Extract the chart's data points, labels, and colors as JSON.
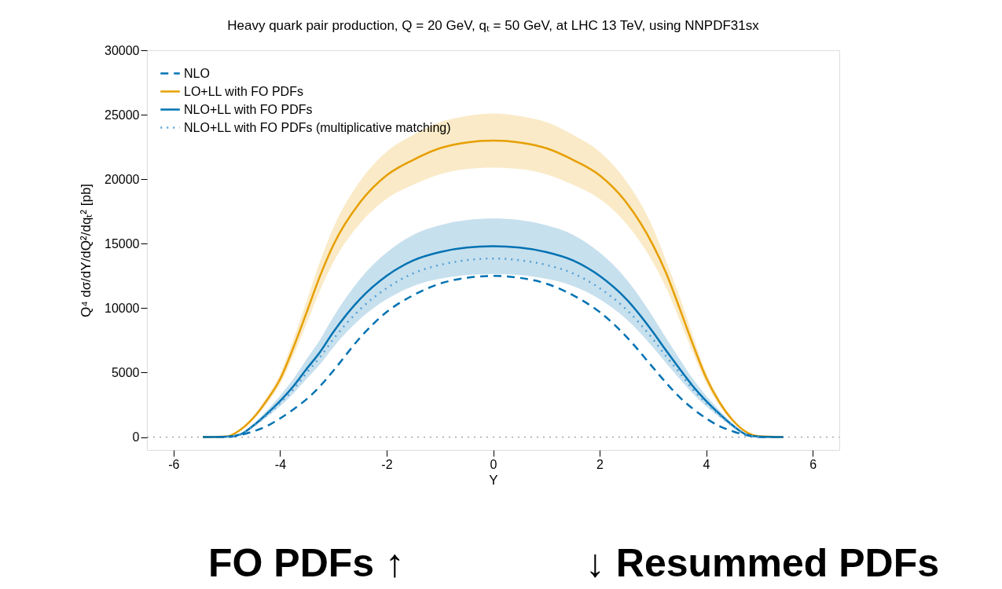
{
  "chart_data": {
    "type": "line",
    "title": "Heavy quark pair production, Q = 20 GeV, qₜ = 50 GeV, at LHC 13 TeV, using NNPDF31sx",
    "xlabel": "Y",
    "ylabel": "Q⁴ dσ/dY/dQ²/dqₜ² [pb]",
    "x": [
      -5.45,
      -5,
      -4.75,
      -4.5,
      -4.25,
      -4,
      -3.75,
      -3.5,
      -3.25,
      -3,
      -2.5,
      -2,
      -1.5,
      -1,
      -0.5,
      0,
      0.5,
      1,
      1.5,
      2,
      2.5,
      3,
      3.25,
      3.5,
      3.75,
      4,
      4.25,
      4.5,
      4.75,
      5,
      5.45
    ],
    "series": [
      {
        "name": "NLO",
        "color": "#0072b2",
        "line_style": "dashed",
        "values": [
          0,
          0,
          150,
          450,
          850,
          1450,
          2150,
          2950,
          3950,
          5150,
          7700,
          9700,
          11000,
          11900,
          12350,
          12500,
          12350,
          11900,
          11000,
          9700,
          7800,
          5400,
          4200,
          3100,
          2200,
          1450,
          850,
          450,
          150,
          0,
          0
        ]
      },
      {
        "name": "LO+LL with FO PDFs",
        "color": "#e69f00",
        "line_style": "solid",
        "values": [
          0,
          50,
          550,
          1500,
          2850,
          4500,
          6950,
          9700,
          12500,
          14900,
          18200,
          20300,
          21500,
          22400,
          22850,
          23000,
          22850,
          22400,
          21500,
          20300,
          18200,
          14900,
          12700,
          10000,
          7200,
          4600,
          2700,
          1300,
          400,
          60,
          0
        ],
        "upper": [
          0,
          55,
          600,
          1640,
          3110,
          4900,
          7580,
          10570,
          13630,
          16240,
          19840,
          22130,
          23440,
          24420,
          24900,
          25100,
          24900,
          24420,
          23440,
          22130,
          19840,
          16240,
          13630,
          10900,
          7850,
          5010,
          2940,
          1420,
          440,
          65,
          0
        ],
        "lower": [
          0,
          45,
          500,
          1370,
          2590,
          4100,
          6320,
          8830,
          11380,
          13560,
          16560,
          18470,
          19570,
          20380,
          20790,
          20900,
          20790,
          20380,
          19570,
          18470,
          16560,
          13560,
          11560,
          9100,
          6550,
          4190,
          2460,
          1180,
          360,
          55,
          0
        ]
      },
      {
        "name": "NLO+LL with FO PDFs",
        "color": "#0072b2",
        "line_style": "solid",
        "values": [
          0,
          30,
          200,
          900,
          1800,
          2800,
          3950,
          5300,
          6600,
          8150,
          10700,
          12500,
          13700,
          14350,
          14700,
          14800,
          14700,
          14350,
          13700,
          12500,
          10700,
          8150,
          6700,
          5300,
          3950,
          2800,
          1800,
          900,
          200,
          30,
          0
        ],
        "upper": [
          0,
          35,
          230,
          1030,
          2060,
          3210,
          4520,
          6070,
          7560,
          9330,
          12250,
          14310,
          15690,
          16430,
          16830,
          16950,
          16830,
          16430,
          15690,
          14310,
          12250,
          9330,
          7670,
          6070,
          4520,
          3210,
          2060,
          1030,
          230,
          35,
          0
        ],
        "lower": [
          0,
          25,
          170,
          770,
          1540,
          2390,
          3380,
          4530,
          5640,
          6970,
          9150,
          10690,
          11710,
          12270,
          12570,
          12650,
          12570,
          12270,
          11710,
          10690,
          9150,
          6970,
          5730,
          4530,
          3380,
          2390,
          1540,
          770,
          170,
          25,
          0
        ]
      },
      {
        "name": "NLO+LL with FO PDFs (multiplicative matching)",
        "color": "#56a0d3",
        "line_style": "dotted",
        "values": [
          null,
          20,
          200,
          850,
          1700,
          2650,
          3700,
          5000,
          6200,
          7600,
          9900,
          11550,
          12700,
          13350,
          13720,
          13850,
          13720,
          13350,
          12700,
          11550,
          9900,
          7600,
          6250,
          5000,
          3700,
          2650,
          1700,
          850,
          200,
          20,
          null
        ]
      }
    ],
    "ref_lines": [
      {
        "axis": "y",
        "value": 0,
        "color": "#999999",
        "line_style": "dotted"
      }
    ],
    "xlim": [
      -6.5,
      6.5
    ],
    "ylim": [
      -1000,
      30000
    ],
    "xticks": [
      -6,
      -4,
      -2,
      0,
      2,
      4,
      6
    ],
    "yticks": [
      0,
      5000,
      10000,
      15000,
      20000,
      25000,
      30000
    ],
    "grid": false,
    "legend": "top left",
    "marker": "none",
    "annotations": [
      "FO PDFs ↑",
      "↓ Resummed PDFs"
    ]
  }
}
